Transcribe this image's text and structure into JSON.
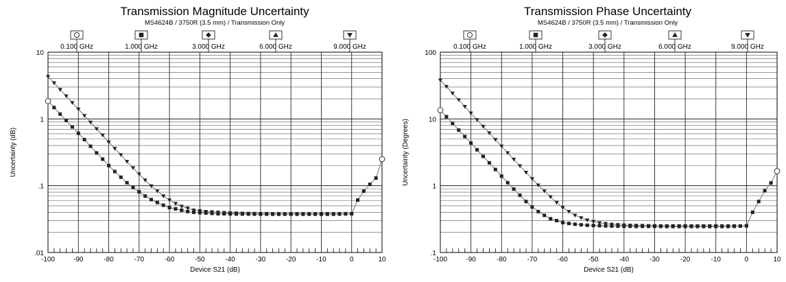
{
  "chart_data": [
    {
      "type": "line",
      "title": "Transmission Magnitude Uncertainty",
      "subtitle": "MS4624B / 3750R (3.5 mm) / Transmission Only",
      "xlabel": "Device S21 (dB)",
      "ylabel": "Uncertainty (dB)",
      "xlim": [
        -100,
        10
      ],
      "ylim": [
        0.01,
        10
      ],
      "yscale": "log",
      "x_ticks": [
        "-100",
        "-90",
        "-80",
        "-70",
        "-60",
        "-50",
        "-40",
        "-30",
        "-20",
        "-10",
        "0",
        "10"
      ],
      "y_ticks": [
        {
          "value": 10,
          "label": "10"
        },
        {
          "value": 1,
          "label": "1"
        },
        {
          "value": 0.1,
          "label": ".1"
        },
        {
          "value": 0.01,
          "label": ".01"
        }
      ],
      "grid": true,
      "legend": [
        {
          "marker": "circle",
          "label": "0.100 GHz"
        },
        {
          "marker": "square",
          "label": "1.000 GHz"
        },
        {
          "marker": "diamond",
          "label": "3.000 GHz"
        },
        {
          "marker": "triangle-up",
          "label": "6.000 GHz"
        },
        {
          "marker": "triangle-down",
          "label": "9.000 GHz"
        }
      ],
      "series": [
        {
          "name": "0.100 GHz",
          "marker": "circle",
          "x": [
            -100,
            10
          ],
          "y": [
            1.85,
            0.25
          ]
        },
        {
          "name": "1.000 GHz",
          "marker": "square",
          "x": [
            -98,
            -96,
            -94,
            -92,
            -90,
            -88,
            -86,
            -84,
            -82,
            -80,
            -78,
            -76,
            -74,
            -72,
            -70,
            -68,
            -66,
            -64,
            -62,
            -60,
            -58,
            -56,
            -54,
            -52,
            -50,
            -48,
            -46,
            -44,
            -42,
            -40,
            -38,
            -36,
            -34,
            -32,
            -30,
            -28,
            -26,
            -24,
            -22,
            -20,
            -18,
            -16,
            -14,
            -12,
            -10,
            -8,
            -6,
            -4,
            -2,
            0,
            2,
            4,
            6,
            8
          ],
          "y": [
            1.48,
            1.18,
            0.95,
            0.76,
            0.61,
            0.49,
            0.39,
            0.31,
            0.25,
            0.2,
            0.163,
            0.134,
            0.111,
            0.094,
            0.081,
            0.07,
            0.062,
            0.056,
            0.051,
            0.047,
            0.045,
            0.043,
            0.041,
            0.04,
            0.0395,
            0.039,
            0.0385,
            0.038,
            0.038,
            0.0378,
            0.0377,
            0.0376,
            0.0376,
            0.0375,
            0.0375,
            0.0375,
            0.0374,
            0.0374,
            0.0374,
            0.0374,
            0.0374,
            0.0374,
            0.0374,
            0.0374,
            0.0374,
            0.0374,
            0.0374,
            0.0376,
            0.0378,
            0.038,
            0.061,
            0.083,
            0.105,
            0.13
          ]
        },
        {
          "name": "9.000 GHz",
          "marker": "triangle-down",
          "x": [
            -100,
            -98,
            -96,
            -94,
            -92,
            -90,
            -88,
            -86,
            -84,
            -82,
            -80,
            -78,
            -76,
            -74,
            -72,
            -70,
            -68,
            -66,
            -64,
            -62,
            -60,
            -58,
            -56,
            -54,
            -52,
            -50,
            -48,
            -46,
            -44,
            -42,
            -40,
            -38,
            -36,
            -34,
            -32,
            -30,
            -28,
            -26,
            -24,
            -22,
            -20,
            -18,
            -16,
            -14,
            -12,
            -10,
            -8,
            -6,
            -4,
            -2,
            0
          ],
          "y": [
            4.3,
            3.45,
            2.75,
            2.2,
            1.75,
            1.4,
            1.12,
            0.89,
            0.71,
            0.57,
            0.45,
            0.36,
            0.29,
            0.23,
            0.185,
            0.149,
            0.121,
            0.099,
            0.083,
            0.07,
            0.061,
            0.054,
            0.049,
            0.046,
            0.043,
            0.042,
            0.041,
            0.0405,
            0.04,
            0.0395,
            0.039,
            0.0388,
            0.0386,
            0.0384,
            0.0383,
            0.0382,
            0.0381,
            0.038,
            0.038,
            0.038,
            0.038,
            0.038,
            0.038,
            0.038,
            0.038,
            0.038,
            0.038,
            0.038,
            0.038,
            0.038,
            0.038
          ]
        }
      ]
    },
    {
      "type": "line",
      "title": "Transmission Phase Uncertainty",
      "subtitle": "MS4624B / 3750R (3.5 mm) / Transmission Only",
      "xlabel": "Device S21 (dB)",
      "ylabel": "Uncertainty (Degrees)",
      "xlim": [
        -100,
        10
      ],
      "ylim": [
        0.1,
        100
      ],
      "yscale": "log",
      "x_ticks": [
        "-100",
        "-90",
        "-80",
        "-70",
        "-60",
        "-50",
        "-40",
        "-30",
        "-20",
        "-10",
        "0",
        "10"
      ],
      "y_ticks": [
        {
          "value": 100,
          "label": "100"
        },
        {
          "value": 10,
          "label": "10"
        },
        {
          "value": 1,
          "label": "1"
        },
        {
          "value": 0.1,
          "label": ".1"
        }
      ],
      "grid": true,
      "legend": [
        {
          "marker": "circle",
          "label": "0.100 GHz"
        },
        {
          "marker": "square",
          "label": "1.000 GHz"
        },
        {
          "marker": "diamond",
          "label": "3.000 GHz"
        },
        {
          "marker": "triangle-up",
          "label": "6.000 GHz"
        },
        {
          "marker": "triangle-down",
          "label": "9.000 GHz"
        }
      ],
      "series": [
        {
          "name": "0.100 GHz",
          "marker": "circle",
          "x": [
            -100,
            10
          ],
          "y": [
            13.5,
            1.65
          ]
        },
        {
          "name": "1.000 GHz",
          "marker": "square",
          "x": [
            -98,
            -96,
            -94,
            -92,
            -90,
            -88,
            -86,
            -84,
            -82,
            -80,
            -78,
            -76,
            -74,
            -72,
            -70,
            -68,
            -66,
            -64,
            -62,
            -60,
            -58,
            -56,
            -54,
            -52,
            -50,
            -48,
            -46,
            -44,
            -42,
            -40,
            -38,
            -36,
            -34,
            -32,
            -30,
            -28,
            -26,
            -24,
            -22,
            -20,
            -18,
            -16,
            -14,
            -12,
            -10,
            -8,
            -6,
            -4,
            -2,
            0,
            2,
            4,
            6,
            8
          ],
          "y": [
            10.8,
            8.6,
            6.8,
            5.45,
            4.35,
            3.45,
            2.75,
            2.2,
            1.75,
            1.39,
            1.11,
            0.89,
            0.72,
            0.58,
            0.48,
            0.41,
            0.36,
            0.32,
            0.3,
            0.28,
            0.272,
            0.265,
            0.26,
            0.256,
            0.254,
            0.252,
            0.25,
            0.249,
            0.248,
            0.247,
            0.247,
            0.246,
            0.246,
            0.246,
            0.246,
            0.246,
            0.245,
            0.245,
            0.245,
            0.245,
            0.245,
            0.245,
            0.245,
            0.245,
            0.245,
            0.245,
            0.245,
            0.246,
            0.248,
            0.25,
            0.4,
            0.58,
            0.84,
            1.1
          ]
        },
        {
          "name": "9.000 GHz",
          "marker": "triangle-down",
          "x": [
            -100,
            -98,
            -96,
            -94,
            -92,
            -90,
            -88,
            -86,
            -84,
            -82,
            -80,
            -78,
            -76,
            -74,
            -72,
            -70,
            -68,
            -66,
            -64,
            -62,
            -60,
            -58,
            -56,
            -54,
            -52,
            -50,
            -48,
            -46,
            -44,
            -42,
            -40,
            -38,
            -36,
            -34,
            -32,
            -30,
            -28,
            -26,
            -24,
            -22,
            -20,
            -18,
            -16,
            -14,
            -12,
            -10,
            -8,
            -6,
            -4,
            -2,
            0
          ],
          "y": [
            38,
            30.5,
            24.2,
            19.3,
            15.3,
            12.2,
            9.7,
            7.7,
            6.15,
            4.9,
            3.9,
            3.1,
            2.48,
            1.98,
            1.58,
            1.27,
            1.02,
            0.83,
            0.68,
            0.56,
            0.47,
            0.41,
            0.36,
            0.33,
            0.305,
            0.29,
            0.278,
            0.27,
            0.264,
            0.26,
            0.257,
            0.255,
            0.254,
            0.253,
            0.252,
            0.251,
            0.25,
            0.25,
            0.25,
            0.25,
            0.25,
            0.25,
            0.25,
            0.25,
            0.25,
            0.25,
            0.25,
            0.25,
            0.25,
            0.25,
            0.25
          ]
        }
      ]
    }
  ]
}
